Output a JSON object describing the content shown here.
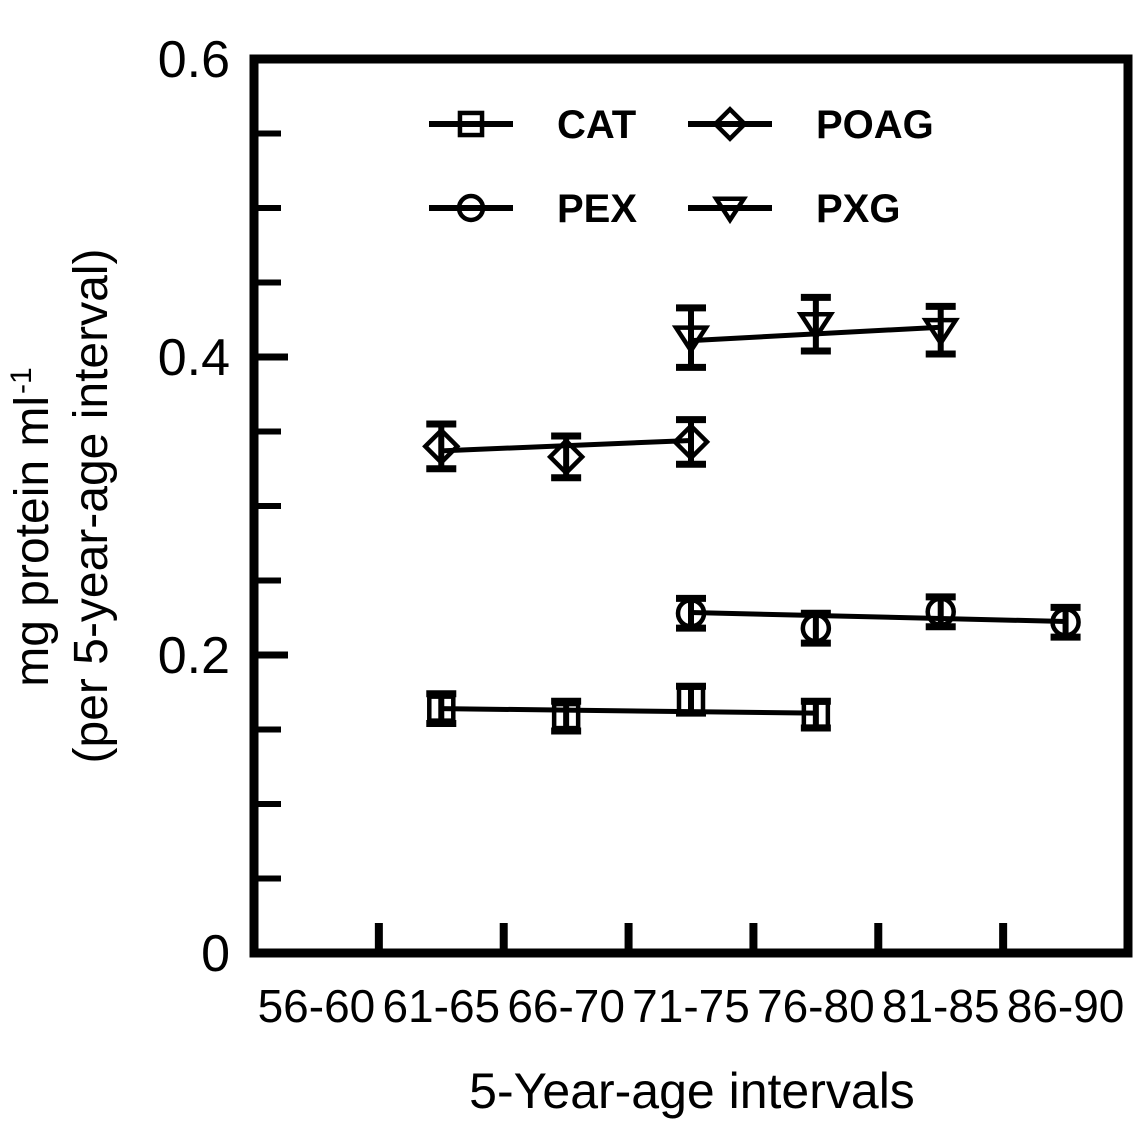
{
  "chart_data": {
    "type": "scatter",
    "title": "",
    "xlabel": "5-Year-age intervals",
    "ylabel_main": "mg protein ml",
    "ylabel_superscript": "-1",
    "ylabel_secondary": "(per 5-year-age interval)",
    "categories": [
      "56-60",
      "61-65",
      "66-70",
      "71-75",
      "76-80",
      "81-85",
      "86-90"
    ],
    "y_axis": {
      "min": 0,
      "max": 0.6,
      "major_ticks": [
        0,
        0.2,
        0.4,
        0.6
      ],
      "major_tick_labels": [
        "0",
        "0.2",
        "0.4",
        "0.6"
      ],
      "minor_tick_step": 0.05
    },
    "grid": false,
    "error_bars": true,
    "colors": {
      "foreground": "#000000",
      "background": "#ffffff"
    },
    "legend": {
      "position": "top-inside",
      "rows": [
        [
          "CAT",
          "POAG"
        ],
        [
          "PEX",
          "PXG"
        ]
      ]
    },
    "series": [
      {
        "name": "CAT",
        "marker": "square",
        "points": [
          {
            "category": "61-65",
            "value": 0.164,
            "error": 0.01
          },
          {
            "category": "66-70",
            "value": 0.159,
            "error": 0.01
          },
          {
            "category": "71-75",
            "value": 0.17,
            "error": 0.009
          },
          {
            "category": "76-80",
            "value": 0.16,
            "error": 0.009
          }
        ],
        "trend_line": {
          "from_category": "61-65",
          "from_value": 0.164,
          "to_category": "76-80",
          "to_value": 0.161
        }
      },
      {
        "name": "PEX",
        "marker": "circle",
        "points": [
          {
            "category": "71-75",
            "value": 0.228,
            "error": 0.01
          },
          {
            "category": "76-80",
            "value": 0.218,
            "error": 0.01
          },
          {
            "category": "81-85",
            "value": 0.229,
            "error": 0.01
          },
          {
            "category": "86-90",
            "value": 0.222,
            "error": 0.01
          }
        ],
        "trend_line": {
          "from_category": "71-75",
          "from_value": 0.2285,
          "to_category": "86-90",
          "to_value": 0.2225
        }
      },
      {
        "name": "POAG",
        "marker": "diamond",
        "points": [
          {
            "category": "61-65",
            "value": 0.34,
            "error": 0.015
          },
          {
            "category": "66-70",
            "value": 0.333,
            "error": 0.014
          },
          {
            "category": "71-75",
            "value": 0.343,
            "error": 0.015
          }
        ],
        "trend_line": {
          "from_category": "61-65",
          "from_value": 0.337,
          "to_category": "71-75",
          "to_value": 0.344
        }
      },
      {
        "name": "PXG",
        "marker": "triangle-down",
        "points": [
          {
            "category": "71-75",
            "value": 0.413,
            "error": 0.02
          },
          {
            "category": "76-80",
            "value": 0.422,
            "error": 0.018
          },
          {
            "category": "81-85",
            "value": 0.418,
            "error": 0.016
          }
        ],
        "trend_line": {
          "from_category": "71-75",
          "from_value": 0.411,
          "to_category": "81-85",
          "to_value": 0.42
        }
      }
    ]
  }
}
